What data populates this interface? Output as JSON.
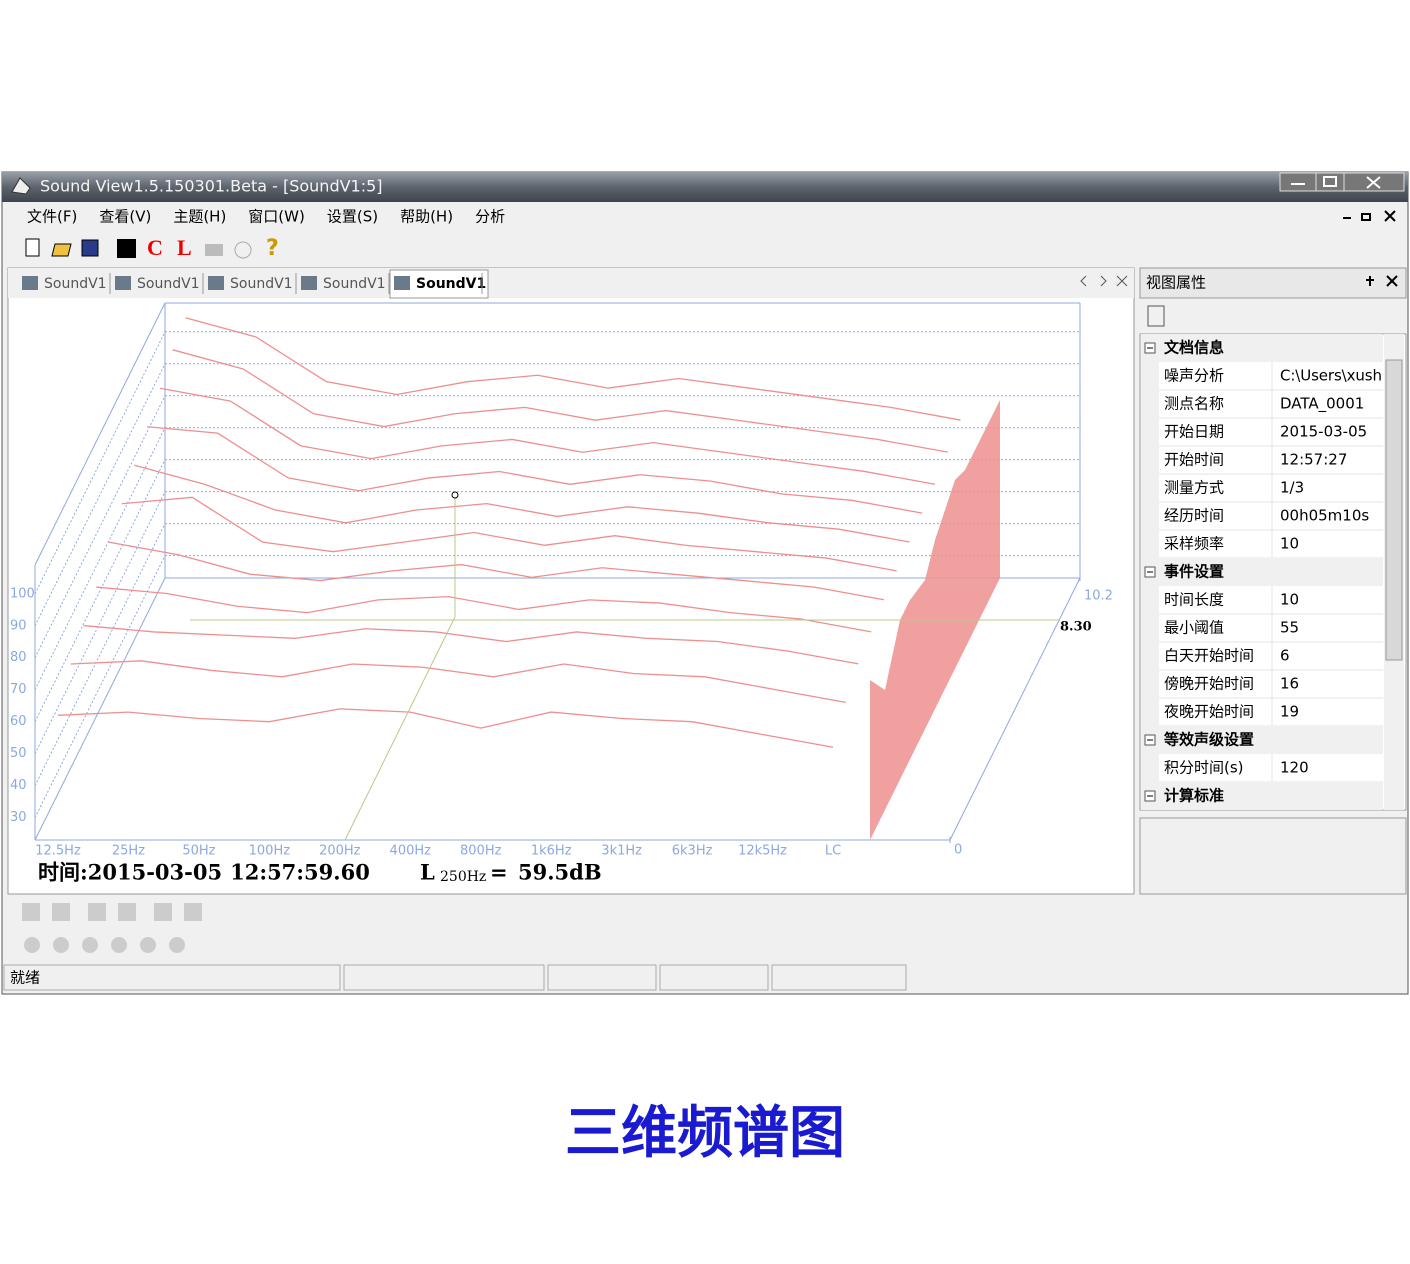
{
  "window": {
    "title": "Sound View1.5.150301.Beta - [SoundV1:5]"
  },
  "menu": [
    "文件(F)",
    "查看(V)",
    "主题(H)",
    "窗口(W)",
    "设置(S)",
    "帮助(H)",
    "分析"
  ],
  "toolbar": {
    "c": "C",
    "l": "L"
  },
  "tabs": [
    "SoundV1",
    "SoundV1",
    "SoundV1",
    "SoundV1",
    "SoundV1"
  ],
  "chart_data": {
    "type": "waterfall",
    "categories": [
      "12.5Hz",
      "25Hz",
      "50Hz",
      "100Hz",
      "200Hz",
      "400Hz",
      "800Hz",
      "1k6Hz",
      "3k1Hz",
      "6k3Hz",
      "12k5Hz",
      "LC"
    ],
    "zlim": [
      23,
      109
    ],
    "zticks": [
      100,
      90,
      80,
      70,
      60,
      50,
      40,
      30
    ],
    "depthlim": [
      0,
      10.2
    ],
    "depthticks": [
      0,
      10.2
    ],
    "color": "#ee8f8f",
    "series": [
      {
        "depth": 0,
        "values": [
          62,
          63,
          61,
          60,
          64,
          63,
          58,
          63,
          61,
          60,
          56,
          52
        ]
      },
      {
        "depth": 1,
        "values": [
          70,
          71,
          68,
          66,
          70,
          69,
          66,
          70,
          67,
          66,
          62,
          58
        ]
      },
      {
        "depth": 2,
        "values": [
          74,
          72,
          71,
          70,
          73,
          72,
          69,
          72,
          70,
          69,
          66,
          62
        ]
      },
      {
        "depth": 3,
        "values": [
          78,
          76,
          72,
          70,
          74,
          75,
          71,
          74,
          73,
          70,
          68,
          64
        ]
      },
      {
        "depth": 4,
        "values": [
          84,
          80,
          74,
          72,
          75,
          77,
          73,
          76,
          74,
          72,
          70,
          66
        ]
      },
      {
        "depth": 5,
        "values": [
          88,
          90,
          76,
          73,
          76,
          79,
          75,
          78,
          75,
          73,
          71,
          67
        ]
      },
      {
        "depth": 6,
        "values": [
          92,
          86,
          78,
          74,
          78,
          80,
          76,
          79,
          77,
          74,
          72,
          68
        ]
      },
      {
        "depth": 7,
        "values": [
          96,
          94,
          80,
          76,
          80,
          82,
          78,
          81,
          79,
          75,
          73,
          69
        ]
      },
      {
        "depth": 8,
        "values": [
          100,
          96,
          82,
          78,
          82,
          84,
          80,
          83,
          80,
          77,
          74,
          70
        ]
      },
      {
        "depth": 9,
        "values": [
          104,
          98,
          84,
          80,
          84,
          86,
          82,
          85,
          82,
          79,
          76,
          72
        ]
      },
      {
        "depth": 10,
        "values": [
          106,
          100,
          86,
          82,
          86,
          88,
          84,
          87,
          84,
          81,
          78,
          74
        ]
      }
    ],
    "cursor_label": "8.30",
    "time_label": "时间:",
    "date": "2015-03-05",
    "clock": "12:57:59.60",
    "level_symbol": "L",
    "level_band": "250Hz",
    "level_eq": "=",
    "level_value": "59.5dB"
  },
  "panel": {
    "title": "视图属性",
    "sections": [
      {
        "name": "文档信息",
        "rows": [
          [
            "噪声分析",
            "C:\\Users\\xush"
          ],
          [
            "测点名称",
            "DATA_0001"
          ],
          [
            "开始日期",
            "2015-03-05"
          ],
          [
            "开始时间",
            "12:57:27"
          ],
          [
            "测量方式",
            "1/3"
          ],
          [
            "经历时间",
            "00h05m10s"
          ],
          [
            "采样频率",
            "10"
          ]
        ]
      },
      {
        "name": "事件设置",
        "rows": [
          [
            "时间长度",
            "10"
          ],
          [
            "最小阈值",
            "55"
          ],
          [
            "白天开始时间",
            "6"
          ],
          [
            "傍晚开始时间",
            "16"
          ],
          [
            "夜晚开始时间",
            "19"
          ]
        ]
      },
      {
        "name": "等效声级设置",
        "rows": [
          [
            "积分时间(s)",
            "120"
          ]
        ]
      },
      {
        "name": "计算标准",
        "rows": []
      }
    ]
  },
  "status": "就绪",
  "caption": "三维频谱图"
}
